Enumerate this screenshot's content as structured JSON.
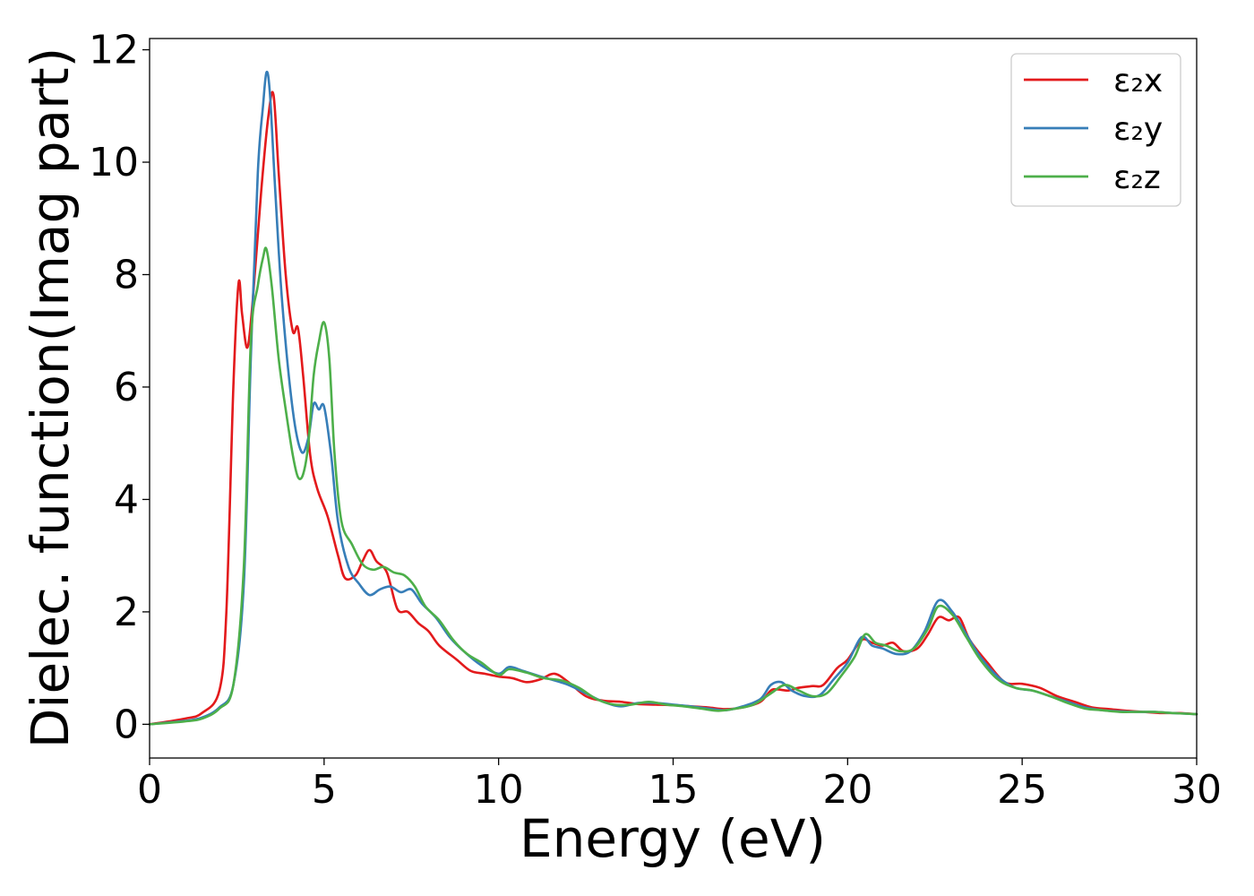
{
  "chart_data": {
    "type": "line",
    "title": "",
    "xlabel": "Energy (eV)",
    "ylabel": "Dielec. function(Imag part)",
    "xlim": [
      0,
      30
    ],
    "ylim": [
      -0.6,
      12.2
    ],
    "xticks": [
      0,
      5,
      10,
      15,
      20,
      25,
      30
    ],
    "yticks": [
      0,
      2,
      4,
      6,
      8,
      10,
      12
    ],
    "grid": false,
    "legend_position": "top-right",
    "series": [
      {
        "name": "ε₂x",
        "color": "#e31a1c",
        "points": [
          [
            0,
            0
          ],
          [
            1,
            0.1
          ],
          [
            1.5,
            0.2
          ],
          [
            2,
            0.6
          ],
          [
            2.2,
            2.0
          ],
          [
            2.4,
            6.0
          ],
          [
            2.55,
            7.85
          ],
          [
            2.65,
            7.3
          ],
          [
            2.8,
            6.7
          ],
          [
            2.95,
            7.5
          ],
          [
            3.2,
            9.5
          ],
          [
            3.4,
            10.8
          ],
          [
            3.55,
            11.2
          ],
          [
            3.7,
            9.8
          ],
          [
            3.9,
            8.0
          ],
          [
            4.1,
            7.0
          ],
          [
            4.25,
            7.05
          ],
          [
            4.4,
            6.2
          ],
          [
            4.6,
            4.8
          ],
          [
            4.8,
            4.2
          ],
          [
            5.1,
            3.7
          ],
          [
            5.4,
            3.0
          ],
          [
            5.6,
            2.6
          ],
          [
            5.9,
            2.65
          ],
          [
            6.1,
            2.9
          ],
          [
            6.3,
            3.1
          ],
          [
            6.5,
            2.9
          ],
          [
            6.8,
            2.7
          ],
          [
            7.1,
            2.05
          ],
          [
            7.4,
            2.0
          ],
          [
            7.7,
            1.8
          ],
          [
            8.0,
            1.65
          ],
          [
            8.3,
            1.4
          ],
          [
            8.8,
            1.15
          ],
          [
            9.2,
            0.95
          ],
          [
            9.6,
            0.9
          ],
          [
            10.0,
            0.85
          ],
          [
            10.4,
            0.82
          ],
          [
            10.8,
            0.75
          ],
          [
            11.2,
            0.8
          ],
          [
            11.6,
            0.9
          ],
          [
            12.0,
            0.75
          ],
          [
            12.5,
            0.5
          ],
          [
            13.0,
            0.42
          ],
          [
            13.5,
            0.4
          ],
          [
            14.0,
            0.36
          ],
          [
            14.5,
            0.35
          ],
          [
            15.0,
            0.34
          ],
          [
            15.5,
            0.32
          ],
          [
            16.0,
            0.3
          ],
          [
            16.5,
            0.27
          ],
          [
            17.0,
            0.3
          ],
          [
            17.5,
            0.4
          ],
          [
            17.8,
            0.6
          ],
          [
            18.0,
            0.62
          ],
          [
            18.3,
            0.6
          ],
          [
            18.6,
            0.65
          ],
          [
            19.0,
            0.68
          ],
          [
            19.3,
            0.7
          ],
          [
            19.7,
            1.0
          ],
          [
            20.0,
            1.15
          ],
          [
            20.4,
            1.5
          ],
          [
            20.7,
            1.45
          ],
          [
            21.0,
            1.4
          ],
          [
            21.3,
            1.45
          ],
          [
            21.6,
            1.3
          ],
          [
            22.0,
            1.35
          ],
          [
            22.3,
            1.6
          ],
          [
            22.6,
            1.9
          ],
          [
            22.9,
            1.85
          ],
          [
            23.2,
            1.9
          ],
          [
            23.5,
            1.5
          ],
          [
            24.0,
            1.1
          ],
          [
            24.5,
            0.75
          ],
          [
            25.0,
            0.72
          ],
          [
            25.5,
            0.65
          ],
          [
            26.0,
            0.5
          ],
          [
            26.5,
            0.4
          ],
          [
            27.0,
            0.3
          ],
          [
            27.5,
            0.27
          ],
          [
            28.0,
            0.24
          ],
          [
            28.5,
            0.22
          ],
          [
            29.0,
            0.2
          ],
          [
            29.5,
            0.2
          ],
          [
            30.0,
            0.18
          ]
        ]
      },
      {
        "name": "ε₂y",
        "color": "#377eb8",
        "points": [
          [
            0,
            0
          ],
          [
            1,
            0.06
          ],
          [
            1.5,
            0.12
          ],
          [
            2,
            0.3
          ],
          [
            2.4,
            0.7
          ],
          [
            2.7,
            2.5
          ],
          [
            2.9,
            6.5
          ],
          [
            3.1,
            9.8
          ],
          [
            3.25,
            11.0
          ],
          [
            3.35,
            11.6
          ],
          [
            3.45,
            11.2
          ],
          [
            3.6,
            9.5
          ],
          [
            3.8,
            7.5
          ],
          [
            4.1,
            5.6
          ],
          [
            4.35,
            4.85
          ],
          [
            4.55,
            5.1
          ],
          [
            4.7,
            5.7
          ],
          [
            4.85,
            5.6
          ],
          [
            5.0,
            5.65
          ],
          [
            5.2,
            4.8
          ],
          [
            5.4,
            3.6
          ],
          [
            5.7,
            2.8
          ],
          [
            6.0,
            2.5
          ],
          [
            6.3,
            2.3
          ],
          [
            6.6,
            2.4
          ],
          [
            6.9,
            2.45
          ],
          [
            7.2,
            2.35
          ],
          [
            7.5,
            2.4
          ],
          [
            7.8,
            2.15
          ],
          [
            8.2,
            1.9
          ],
          [
            8.6,
            1.55
          ],
          [
            9.0,
            1.3
          ],
          [
            9.5,
            1.05
          ],
          [
            10.0,
            0.9
          ],
          [
            10.3,
            1.02
          ],
          [
            10.7,
            0.95
          ],
          [
            11.2,
            0.85
          ],
          [
            11.6,
            0.78
          ],
          [
            12.0,
            0.7
          ],
          [
            12.5,
            0.55
          ],
          [
            13.0,
            0.4
          ],
          [
            13.5,
            0.32
          ],
          [
            14.0,
            0.38
          ],
          [
            14.5,
            0.38
          ],
          [
            15.0,
            0.35
          ],
          [
            15.5,
            0.32
          ],
          [
            16.0,
            0.28
          ],
          [
            16.5,
            0.25
          ],
          [
            17.0,
            0.32
          ],
          [
            17.5,
            0.45
          ],
          [
            17.8,
            0.7
          ],
          [
            18.1,
            0.75
          ],
          [
            18.4,
            0.6
          ],
          [
            18.8,
            0.5
          ],
          [
            19.2,
            0.52
          ],
          [
            19.6,
            0.8
          ],
          [
            20.0,
            1.1
          ],
          [
            20.4,
            1.55
          ],
          [
            20.7,
            1.4
          ],
          [
            21.0,
            1.35
          ],
          [
            21.4,
            1.25
          ],
          [
            21.8,
            1.3
          ],
          [
            22.2,
            1.65
          ],
          [
            22.6,
            2.2
          ],
          [
            23.0,
            2.0
          ],
          [
            23.4,
            1.6
          ],
          [
            23.8,
            1.2
          ],
          [
            24.3,
            0.85
          ],
          [
            24.8,
            0.65
          ],
          [
            25.3,
            0.6
          ],
          [
            25.8,
            0.5
          ],
          [
            26.3,
            0.4
          ],
          [
            26.8,
            0.3
          ],
          [
            27.3,
            0.25
          ],
          [
            27.8,
            0.23
          ],
          [
            28.3,
            0.22
          ],
          [
            28.8,
            0.22
          ],
          [
            29.3,
            0.2
          ],
          [
            30.0,
            0.18
          ]
        ]
      },
      {
        "name": "ε₂z",
        "color": "#4daf4a",
        "points": [
          [
            0,
            0
          ],
          [
            1,
            0.05
          ],
          [
            1.5,
            0.1
          ],
          [
            2,
            0.28
          ],
          [
            2.4,
            0.7
          ],
          [
            2.7,
            2.8
          ],
          [
            2.9,
            6.8
          ],
          [
            3.1,
            7.8
          ],
          [
            3.25,
            8.3
          ],
          [
            3.35,
            8.45
          ],
          [
            3.5,
            7.8
          ],
          [
            3.7,
            6.5
          ],
          [
            3.9,
            5.6
          ],
          [
            4.1,
            4.8
          ],
          [
            4.25,
            4.4
          ],
          [
            4.4,
            4.45
          ],
          [
            4.55,
            5.0
          ],
          [
            4.7,
            6.2
          ],
          [
            4.85,
            6.8
          ],
          [
            5.0,
            7.15
          ],
          [
            5.15,
            6.5
          ],
          [
            5.3,
            4.8
          ],
          [
            5.5,
            3.6
          ],
          [
            5.8,
            3.2
          ],
          [
            6.1,
            2.85
          ],
          [
            6.4,
            2.75
          ],
          [
            6.7,
            2.8
          ],
          [
            7.0,
            2.7
          ],
          [
            7.3,
            2.65
          ],
          [
            7.6,
            2.45
          ],
          [
            7.9,
            2.1
          ],
          [
            8.3,
            1.85
          ],
          [
            8.7,
            1.5
          ],
          [
            9.1,
            1.25
          ],
          [
            9.5,
            1.1
          ],
          [
            10.0,
            0.88
          ],
          [
            10.3,
            0.98
          ],
          [
            10.8,
            0.92
          ],
          [
            11.3,
            0.82
          ],
          [
            11.8,
            0.78
          ],
          [
            12.3,
            0.65
          ],
          [
            12.8,
            0.45
          ],
          [
            13.3,
            0.35
          ],
          [
            13.8,
            0.35
          ],
          [
            14.3,
            0.4
          ],
          [
            14.8,
            0.35
          ],
          [
            15.3,
            0.32
          ],
          [
            15.8,
            0.28
          ],
          [
            16.3,
            0.24
          ],
          [
            16.8,
            0.28
          ],
          [
            17.3,
            0.35
          ],
          [
            17.8,
            0.55
          ],
          [
            18.2,
            0.7
          ],
          [
            18.6,
            0.6
          ],
          [
            19.0,
            0.5
          ],
          [
            19.4,
            0.55
          ],
          [
            19.8,
            0.85
          ],
          [
            20.2,
            1.2
          ],
          [
            20.5,
            1.6
          ],
          [
            20.8,
            1.45
          ],
          [
            21.1,
            1.4
          ],
          [
            21.5,
            1.3
          ],
          [
            21.9,
            1.35
          ],
          [
            22.3,
            1.7
          ],
          [
            22.6,
            2.1
          ],
          [
            23.0,
            1.95
          ],
          [
            23.4,
            1.55
          ],
          [
            23.8,
            1.15
          ],
          [
            24.3,
            0.8
          ],
          [
            24.8,
            0.65
          ],
          [
            25.3,
            0.6
          ],
          [
            25.8,
            0.5
          ],
          [
            26.3,
            0.38
          ],
          [
            26.8,
            0.28
          ],
          [
            27.3,
            0.25
          ],
          [
            27.8,
            0.22
          ],
          [
            28.3,
            0.22
          ],
          [
            28.8,
            0.22
          ],
          [
            29.3,
            0.2
          ],
          [
            30.0,
            0.18
          ]
        ]
      }
    ]
  }
}
